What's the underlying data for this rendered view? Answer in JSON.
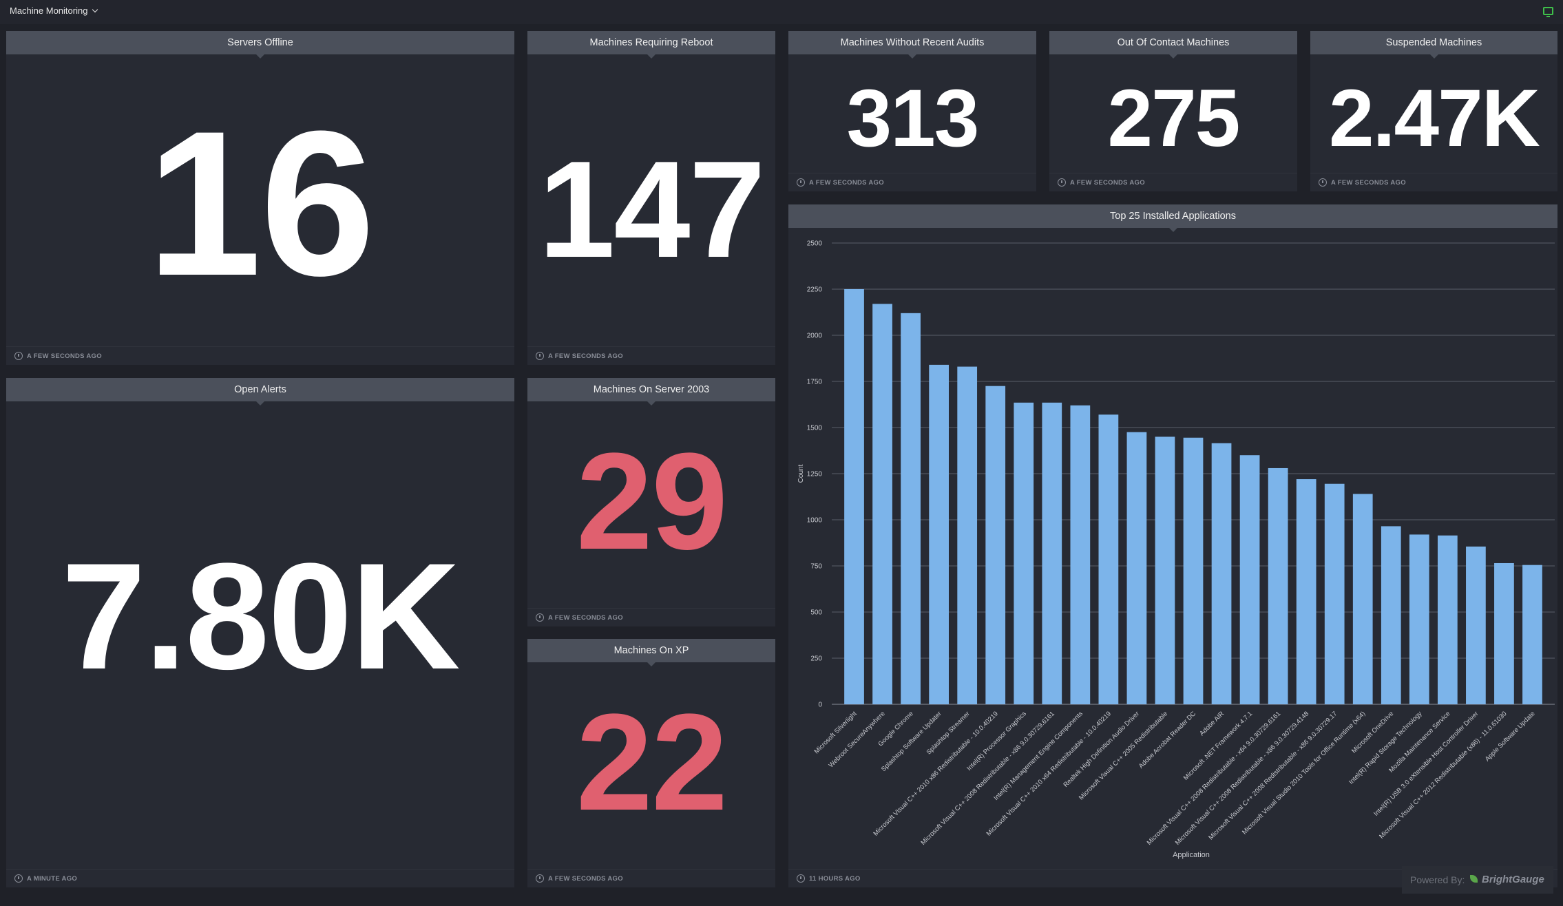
{
  "dashboard": {
    "title": "Machine Monitoring"
  },
  "colors": {
    "white_value": "#ffffff",
    "alert_value": "#e0606f",
    "bar": "#7cb4ea"
  },
  "widgets": {
    "servers_offline": {
      "title": "Servers Offline",
      "value": "16",
      "updated": "A FEW SECONDS AGO"
    },
    "reboot": {
      "title": "Machines Requiring Reboot",
      "value": "147",
      "updated": "A FEW SECONDS AGO"
    },
    "audits": {
      "title": "Machines Without Recent Audits",
      "value": "313",
      "updated": "A FEW SECONDS AGO"
    },
    "out_of_contact": {
      "title": "Out Of Contact Machines",
      "value": "275",
      "updated": "A FEW SECONDS AGO"
    },
    "suspended": {
      "title": "Suspended Machines",
      "value": "2.47K",
      "updated": "A FEW SECONDS AGO"
    },
    "open_alerts": {
      "title": "Open Alerts",
      "value": "7.80K",
      "updated": "A MINUTE AGO"
    },
    "server_2003": {
      "title": "Machines On Server 2003",
      "value": "29",
      "updated": "A FEW SECONDS AGO"
    },
    "xp": {
      "title": "Machines On XP",
      "value": "22",
      "updated": "A FEW SECONDS AGO"
    },
    "top_apps": {
      "title": "Top 25 Installed Applications",
      "updated": "11 HOURS AGO"
    }
  },
  "powered_by": {
    "prefix": "Powered By:",
    "brand": "BrightGauge"
  },
  "chart_data": {
    "type": "bar",
    "xlabel": "Application",
    "ylabel": "Count",
    "ylim": [
      0,
      2500
    ],
    "yticks": [
      0,
      250,
      500,
      750,
      1000,
      1250,
      1500,
      1750,
      2000,
      2250,
      2500
    ],
    "grid": true,
    "categories": [
      "Microsoft Silverlight",
      "Webroot SecureAnywhere",
      "Google Chrome",
      "Splashtop Software Updater",
      "Splashtop Streamer",
      "Microsoft Visual C++ 2010 x86 Redistributable - 10.0.40219",
      "Intel(R) Processor Graphics",
      "Microsoft Visual C++ 2008 Redistributable - x86 9.0.30729.6161",
      "Intel(R) Management Engine Components",
      "Microsoft Visual C++ 2010 x64 Redistributable - 10.0.40219",
      "Realtek High Definition Audio Driver",
      "Microsoft Visual C++ 2005 Redistributable",
      "Adobe Acrobat Reader DC",
      "Adobe AIR",
      "Microsoft .NET Framework 4.7.1",
      "Microsoft Visual C++ 2008 Redistributable - x64 9.0.30729.6161",
      "Microsoft Visual C++ 2008 Redistributable - x86 9.0.30729.4148",
      "Microsoft Visual C++ 2008 Redistributable - x86 9.0.30729.17",
      "Microsoft Visual Studio 2010 Tools for Office Runtime (x64)",
      "Microsoft OneDrive",
      "Intel(R) Rapid Storage Technology",
      "Mozilla Maintenance Service",
      "Intel(R) USB 3.0 eXtensible Host Controller Driver",
      "Microsoft Visual C++ 2012 Redistributable (x86) - 11.0.61030",
      "Apple Software Update"
    ],
    "values": [
      2250,
      2170,
      2120,
      1840,
      1830,
      1725,
      1635,
      1635,
      1620,
      1570,
      1475,
      1450,
      1445,
      1415,
      1350,
      1280,
      1220,
      1195,
      1140,
      965,
      920,
      915,
      855,
      765,
      755
    ]
  }
}
